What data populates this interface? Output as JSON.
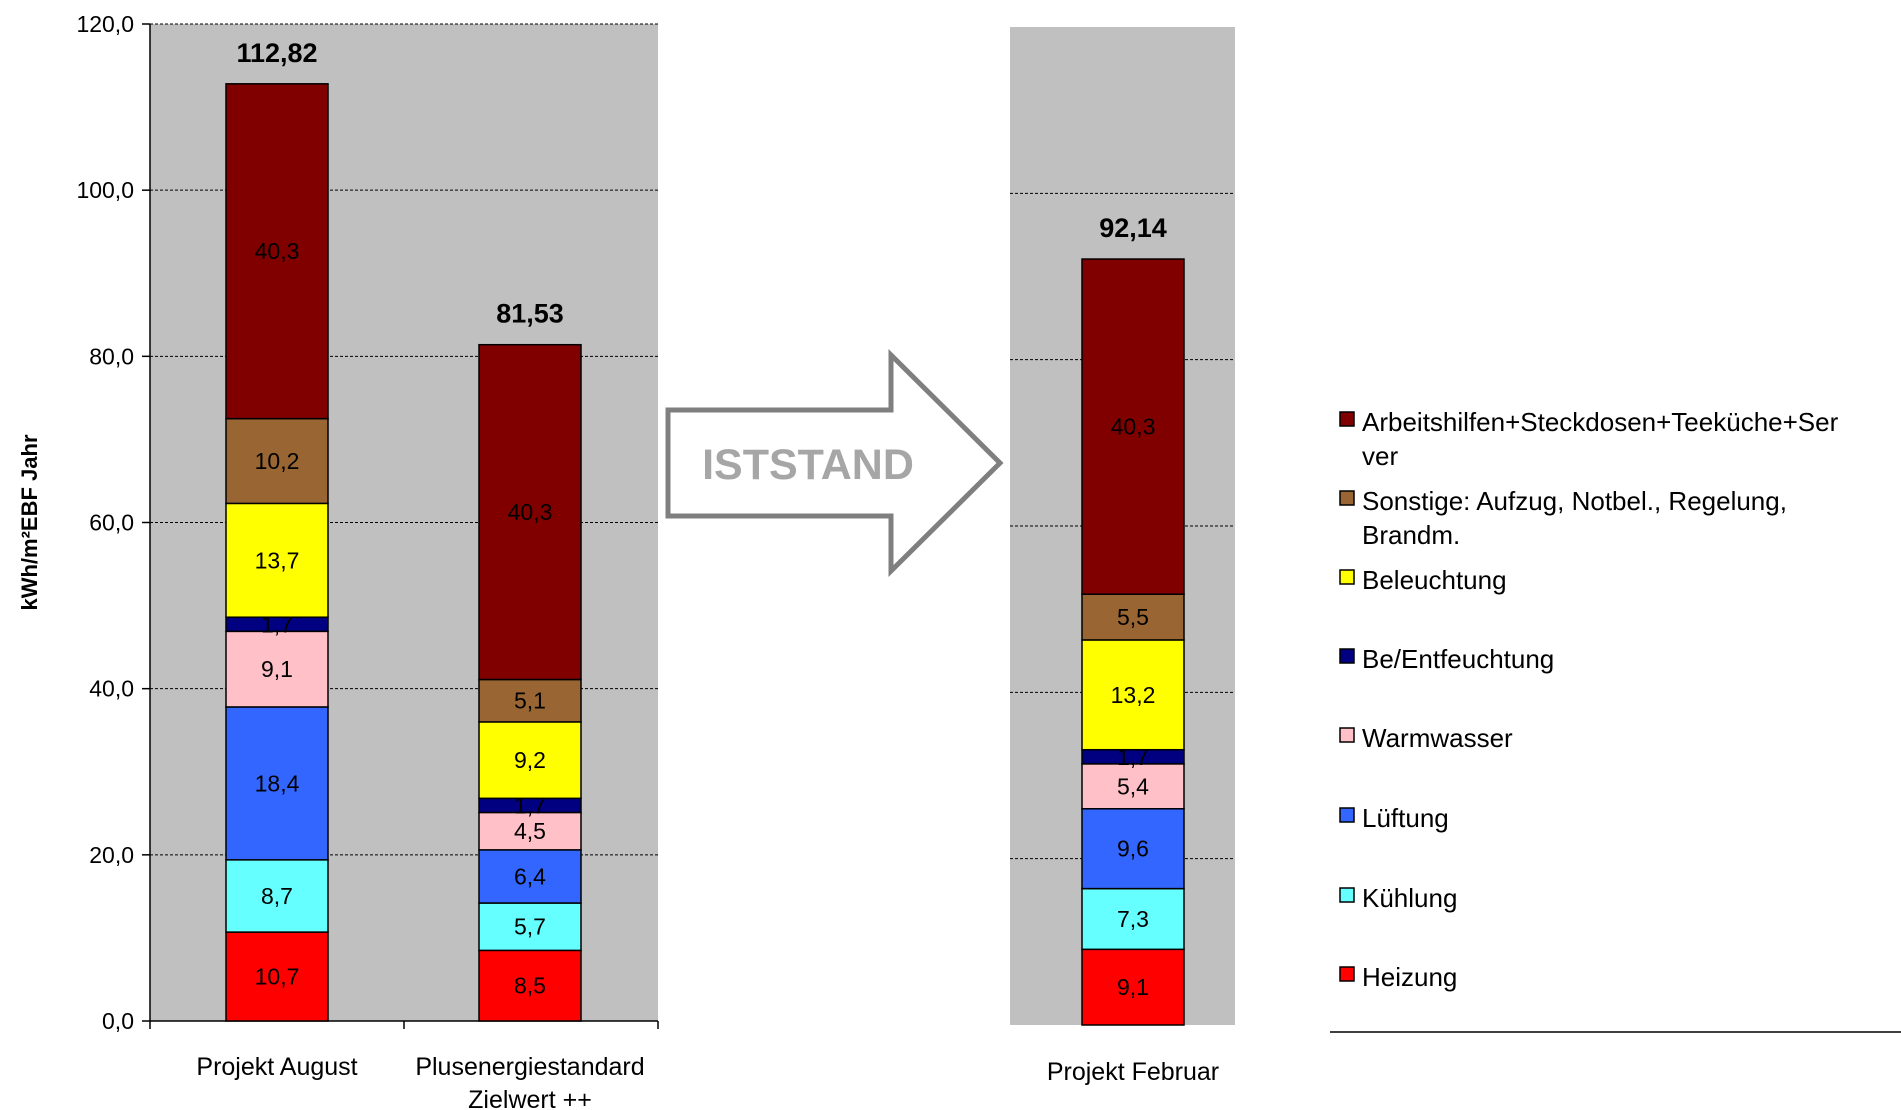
{
  "chart_data": [
    {
      "type": "stacked-bar",
      "ylabel": "kWh/m²EBF Jahr",
      "ylim": [
        0,
        120
      ],
      "ytick_labels": [
        "0,0",
        "20,0",
        "40,0",
        "60,0",
        "80,0",
        "100,0",
        "120,0"
      ],
      "grid": true,
      "categories": [
        [
          "Projekt August"
        ],
        [
          "Plusenergiestandard",
          "Zielwert ++"
        ]
      ],
      "totals": [
        "112,82",
        "81,53"
      ],
      "series": [
        {
          "name": "Heizung",
          "color": "#FF0000",
          "values": [
            10.7,
            8.5
          ],
          "labels": [
            "10,7",
            "8,5"
          ]
        },
        {
          "name": "Kühlung",
          "color": "#66FFFF",
          "values": [
            8.7,
            5.7
          ],
          "labels": [
            "8,7",
            "5,7"
          ]
        },
        {
          "name": "Lüftung",
          "color": "#3366FF",
          "values": [
            18.4,
            6.4
          ],
          "labels": [
            "18,4",
            "6,4"
          ]
        },
        {
          "name": "Warmwasser",
          "color": "#FFC0C8",
          "values": [
            9.1,
            4.5
          ],
          "labels": [
            "9,1",
            "4,5"
          ]
        },
        {
          "name": "Be/Entfeuchtung",
          "color": "#000080",
          "values": [
            1.7,
            1.7
          ],
          "labels": [
            "1,7",
            "1,7"
          ]
        },
        {
          "name": "Beleuchtung",
          "color": "#FFFF00",
          "values": [
            13.7,
            9.2
          ],
          "labels": [
            "13,7",
            "9,2"
          ]
        },
        {
          "name": "Sonstige: Aufzug, Notbel., Regelung, Brandm.",
          "color": "#996633",
          "values": [
            10.2,
            5.1
          ],
          "labels": [
            "10,2",
            "5,1"
          ]
        },
        {
          "name": "Arbeitshilfen+Steckdosen+Teeküche+Server",
          "color": "#800000",
          "values": [
            40.3,
            40.3
          ],
          "labels": [
            "40,3",
            "40,3"
          ]
        }
      ]
    },
    {
      "type": "stacked-bar",
      "ylim": [
        0,
        120
      ],
      "grid": true,
      "categories": [
        [
          "Projekt Februar"
        ]
      ],
      "totals": [
        "92,14"
      ],
      "series": [
        {
          "name": "Heizung",
          "color": "#FF0000",
          "values": [
            9.1
          ],
          "labels": [
            "9,1"
          ]
        },
        {
          "name": "Kühlung",
          "color": "#66FFFF",
          "values": [
            7.3
          ],
          "labels": [
            "7,3"
          ]
        },
        {
          "name": "Lüftung",
          "color": "#3366FF",
          "values": [
            9.6
          ],
          "labels": [
            "9,6"
          ]
        },
        {
          "name": "Warmwasser",
          "color": "#FFC0C8",
          "values": [
            5.4
          ],
          "labels": [
            "5,4"
          ]
        },
        {
          "name": "Be/Entfeuchtung",
          "color": "#000080",
          "values": [
            1.7
          ],
          "labels": [
            "1,7"
          ]
        },
        {
          "name": "Beleuchtung",
          "color": "#FFFF00",
          "values": [
            13.2
          ],
          "labels": [
            "13,2"
          ]
        },
        {
          "name": "Sonstige: Aufzug, Notbel., Regelung, Brandm.",
          "color": "#996633",
          "values": [
            5.5
          ],
          "labels": [
            "5,5"
          ]
        },
        {
          "name": "Arbeitshilfen+Steckdosen+Teeküche+Server",
          "color": "#800000",
          "values": [
            40.3
          ],
          "labels": [
            "40,3"
          ]
        }
      ]
    }
  ],
  "arrow": {
    "label": "ISTSTAND"
  },
  "legend": {
    "items": [
      {
        "lines": [
          "Arbeitshilfen+Steckdosen+Teeküche+Ser",
          "ver"
        ],
        "color": "#800000"
      },
      {
        "lines": [
          "Sonstige: Aufzug,  Notbel.,  Regelung,",
          "Brandm."
        ],
        "color": "#996633"
      },
      {
        "lines": [
          "Beleuchtung"
        ],
        "color": "#FFFF00"
      },
      {
        "lines": [
          "Be/Entfeuchtung"
        ],
        "color": "#000080"
      },
      {
        "lines": [
          "Warmwasser"
        ],
        "color": "#FFC0C8"
      },
      {
        "lines": [
          "Lüftung"
        ],
        "color": "#3366FF"
      },
      {
        "lines": [
          "Kühlung"
        ],
        "color": "#66FFFF"
      },
      {
        "lines": [
          "Heizung"
        ],
        "color": "#FF0000"
      }
    ]
  }
}
